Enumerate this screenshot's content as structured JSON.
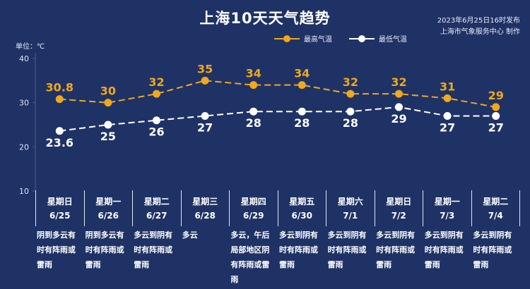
{
  "header": {
    "title": "上海10天天气趋势",
    "publish_line1": "2023年6月25日16时发布",
    "publish_line2": "上海市气象服务中心 制作"
  },
  "unit_label": "单位：℃",
  "colors": {
    "background": "#1f3265",
    "high": "#f0a81c",
    "low": "#ffffff",
    "axis": "#4d5d8e"
  },
  "chart_data": {
    "type": "line",
    "x": [
      "6/25",
      "6/26",
      "6/27",
      "6/28",
      "6/29",
      "6/30",
      "7/1",
      "7/2",
      "7/3",
      "7/4"
    ],
    "ylim": [
      10,
      40
    ],
    "yticks": [
      10,
      20,
      30,
      40
    ],
    "ylabel": "单位：℃",
    "legend_position": "top-right",
    "series": [
      {
        "name": "最高气温",
        "values": [
          30.8,
          30,
          32,
          35,
          34,
          34,
          32,
          32,
          31,
          29
        ],
        "labels": [
          "30.8",
          "30",
          "32",
          "35",
          "34",
          "34",
          "32",
          "32",
          "31",
          "29"
        ]
      },
      {
        "name": "最低气温",
        "values": [
          23.6,
          25,
          26,
          27,
          28,
          28,
          28,
          29,
          27,
          27
        ],
        "labels": [
          "23.6",
          "25",
          "26",
          "27",
          "28",
          "28",
          "28",
          "29",
          "27",
          "27"
        ]
      }
    ]
  },
  "days": [
    {
      "weekday": "星期日",
      "date": "6/25",
      "desc": "阴到多云有时有阵雨或雷雨"
    },
    {
      "weekday": "星期一",
      "date": "6/26",
      "desc": "阴到多云有时有阵雨或雷雨"
    },
    {
      "weekday": "星期二",
      "date": "6/27",
      "desc": "多云到阴有时有阵雨或雷雨"
    },
    {
      "weekday": "星期三",
      "date": "6/28",
      "desc": "多云"
    },
    {
      "weekday": "星期四",
      "date": "6/29",
      "desc": "多云，午后局部地区阴有阵雨或雷雨"
    },
    {
      "weekday": "星期五",
      "date": "6/30",
      "desc": "多云到阴有时有阵雨或雷雨"
    },
    {
      "weekday": "星期六",
      "date": "7/1",
      "desc": "多云到阴有时有阵雨或雷雨"
    },
    {
      "weekday": "星期日",
      "date": "7/2",
      "desc": "多云到阴有时有阵雨或雷雨"
    },
    {
      "weekday": "星期一",
      "date": "7/3",
      "desc": "多云到阴有时有阵雨或雷雨"
    },
    {
      "weekday": "星期二",
      "date": "7/4",
      "desc": "多云到阴有时有阵雨或雷雨"
    }
  ]
}
